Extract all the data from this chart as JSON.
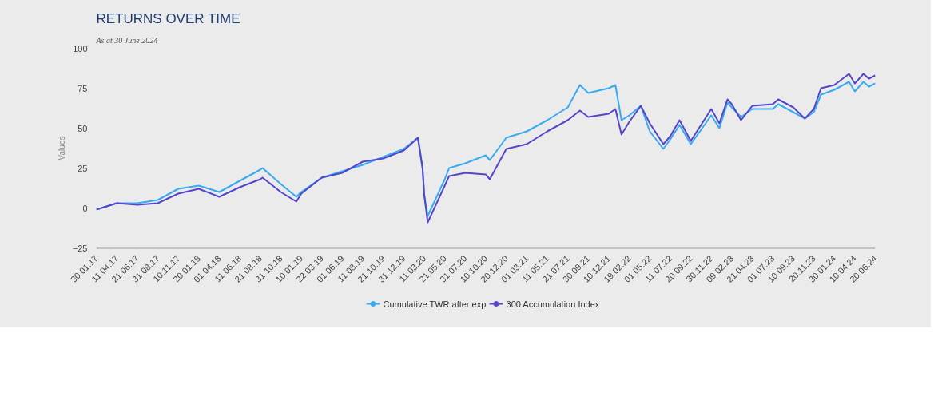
{
  "chart_data": {
    "type": "line",
    "title": "RETURNS OVER TIME",
    "subtitle": "As at 30 June 2024",
    "ylabel": "Values",
    "x": [
      "2017-01-30",
      "2017-04-11",
      "2017-06-21",
      "2017-08-31",
      "2017-11-10",
      "2018-01-20",
      "2018-04-01",
      "2018-06-11",
      "2018-08-21",
      "2018-08-29",
      "2018-10-31",
      "2018-12-24",
      "2019-01-10",
      "2019-03-22",
      "2019-06-01",
      "2019-08-11",
      "2019-10-21",
      "2019-12-31",
      "2020-02-18",
      "2020-03-05",
      "2020-03-11",
      "2020-03-23",
      "2020-05-21",
      "2020-06-05",
      "2020-07-31",
      "2020-10-10",
      "2020-10-24",
      "2020-12-20",
      "2021-03-01",
      "2021-05-11",
      "2021-07-21",
      "2021-09-01",
      "2021-09-30",
      "2021-12-10",
      "2022-01-02",
      "2022-01-23",
      "2022-02-19",
      "2022-03-31",
      "2022-05-01",
      "2022-06-17",
      "2022-07-11",
      "2022-08-12",
      "2022-09-20",
      "2022-11-30",
      "2022-12-28",
      "2023-01-25",
      "2023-02-09",
      "2023-03-13",
      "2023-04-21",
      "2023-07-01",
      "2023-07-20",
      "2023-09-10",
      "2023-10-20",
      "2023-11-20",
      "2023-12-15",
      "2024-01-30",
      "2024-03-21",
      "2024-04-10",
      "2024-05-10",
      "2024-05-29",
      "2024-06-20"
    ],
    "series": [
      {
        "name": "Cumulative TWR after exp",
        "color": "#38aaf0",
        "values": [
          -1,
          3,
          3,
          5,
          12,
          14,
          10,
          17,
          24,
          25,
          15,
          7,
          10,
          19,
          23,
          27,
          32,
          37,
          44,
          25,
          8,
          -5,
          18,
          25,
          28,
          33,
          30,
          44,
          48,
          55,
          63,
          77,
          72,
          75,
          77,
          55,
          58,
          64,
          48,
          37,
          43,
          52,
          40,
          58,
          50,
          66,
          63,
          57,
          62,
          62,
          65,
          60,
          56,
          60,
          71,
          74,
          79,
          73,
          79,
          76,
          78
        ]
      },
      {
        "name": "300 Accumulation Index",
        "color": "#5446c8",
        "values": [
          -1,
          3,
          2,
          3,
          9,
          12,
          7,
          13,
          18,
          19,
          10,
          4,
          9,
          19,
          22,
          29,
          31,
          36,
          44,
          25,
          8,
          -9,
          14,
          20,
          22,
          21,
          18,
          37,
          40,
          48,
          55,
          61,
          57,
          59,
          62,
          46,
          54,
          64,
          53,
          40,
          45,
          55,
          42,
          62,
          53,
          68,
          65,
          55,
          64,
          65,
          68,
          63,
          56,
          62,
          75,
          77,
          84,
          78,
          84,
          81,
          83
        ]
      }
    ],
    "xlim": [
      "2017-01-30",
      "2024-06-20"
    ],
    "xticks": [
      {
        "value": "2017-01-30",
        "label": "30.01.17"
      },
      {
        "value": "2017-04-11",
        "label": "11.04.17"
      },
      {
        "value": "2017-06-21",
        "label": "21.06.17"
      },
      {
        "value": "2017-08-31",
        "label": "31.08.17"
      },
      {
        "value": "2017-11-10",
        "label": "10.11.17"
      },
      {
        "value": "2018-01-20",
        "label": "20.01.18"
      },
      {
        "value": "2018-04-01",
        "label": "01.04.18"
      },
      {
        "value": "2018-06-11",
        "label": "11.06.18"
      },
      {
        "value": "2018-08-21",
        "label": "21.08.18"
      },
      {
        "value": "2018-10-31",
        "label": "31.10.18"
      },
      {
        "value": "2019-01-10",
        "label": "10.01.19"
      },
      {
        "value": "2019-03-22",
        "label": "22.03.19"
      },
      {
        "value": "2019-06-01",
        "label": "01.06.19"
      },
      {
        "value": "2019-08-11",
        "label": "11.08.19"
      },
      {
        "value": "2019-10-21",
        "label": "21.10.19"
      },
      {
        "value": "2019-12-31",
        "label": "31.12.19"
      },
      {
        "value": "2020-03-11",
        "label": "11.03.20"
      },
      {
        "value": "2020-05-21",
        "label": "21.05.20"
      },
      {
        "value": "2020-07-31",
        "label": "31.07.20"
      },
      {
        "value": "2020-10-10",
        "label": "10.10.20"
      },
      {
        "value": "2020-12-20",
        "label": "20.12.20"
      },
      {
        "value": "2021-03-01",
        "label": "01.03.21"
      },
      {
        "value": "2021-05-11",
        "label": "11.05.21"
      },
      {
        "value": "2021-07-21",
        "label": "21.07.21"
      },
      {
        "value": "2021-09-30",
        "label": "30.09.21"
      },
      {
        "value": "2021-12-10",
        "label": "10.12.21"
      },
      {
        "value": "2022-02-19",
        "label": "19.02.22"
      },
      {
        "value": "2022-05-01",
        "label": "01.05.22"
      },
      {
        "value": "2022-07-11",
        "label": "11.07.22"
      },
      {
        "value": "2022-09-20",
        "label": "20.09.22"
      },
      {
        "value": "2022-11-30",
        "label": "30.11.22"
      },
      {
        "value": "2023-02-09",
        "label": "09.02.23"
      },
      {
        "value": "2023-04-21",
        "label": "21.04.23"
      },
      {
        "value": "2023-07-01",
        "label": "01.07.23"
      },
      {
        "value": "2023-09-10",
        "label": "10.09.23"
      },
      {
        "value": "2023-11-20",
        "label": "20.11.23"
      },
      {
        "value": "2024-01-30",
        "label": "30.01.24"
      },
      {
        "value": "2024-04-10",
        "label": "10.04.24"
      },
      {
        "value": "2024-06-20",
        "label": "20.06.24"
      }
    ],
    "ylim": [
      -25,
      100
    ],
    "yticks": [
      -25,
      0,
      25,
      50,
      75,
      100
    ],
    "grid": false,
    "legend": "bottom",
    "line_style": "solid"
  }
}
